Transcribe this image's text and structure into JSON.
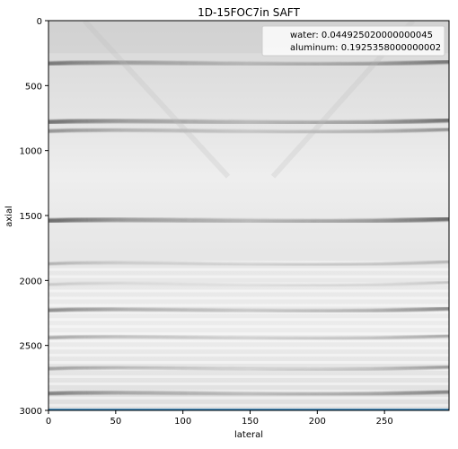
{
  "chart_data": {
    "type": "heatmap",
    "title": "1D-15FOC7in SAFT",
    "xlabel": "lateral",
    "ylabel": "axial",
    "xlim": [
      0,
      298
    ],
    "ylim": [
      3000,
      0
    ],
    "x_ticks": [
      0,
      50,
      100,
      150,
      200,
      250
    ],
    "y_ticks": [
      0,
      500,
      1000,
      1500,
      2000,
      2500,
      3000
    ],
    "colormap": "grayscale (dark = high, light = low)",
    "legend": {
      "placement": "top-right",
      "entries": [
        "water: 0.044925020000000045",
        "aluminum: 0.1925358000000002"
      ]
    },
    "dark_bands": [
      {
        "axial": 330,
        "strength": 0.65
      },
      {
        "axial": 780,
        "strength": 0.7
      },
      {
        "axial": 850,
        "strength": 0.5
      },
      {
        "axial": 1540,
        "strength": 0.75
      },
      {
        "axial": 1870,
        "strength": 0.35
      },
      {
        "axial": 2030,
        "strength": 0.25
      },
      {
        "axial": 2230,
        "strength": 0.55
      },
      {
        "axial": 2440,
        "strength": 0.4
      },
      {
        "axial": 2680,
        "strength": 0.45
      },
      {
        "axial": 2870,
        "strength": 0.6
      }
    ],
    "horizontal_line": {
      "axial": 3000,
      "color": "#1f77b4"
    }
  }
}
